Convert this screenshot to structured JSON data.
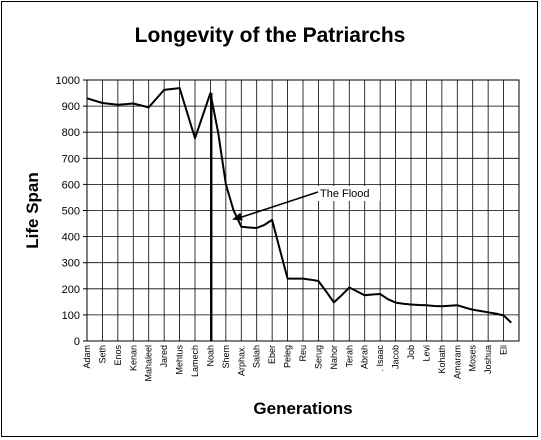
{
  "chart_data": {
    "type": "line",
    "title": "Longevity of the Patriarchs",
    "xlabel": "Generations",
    "ylabel": "Life Span",
    "ylim": [
      0,
      1000
    ],
    "yticks": [
      0,
      100,
      200,
      300,
      400,
      500,
      600,
      700,
      800,
      900,
      1000
    ],
    "grid": true,
    "categories": [
      "Adam",
      "Seth",
      "Enos",
      "Kenan",
      "Mahaleel",
      "Jared",
      "Mehtus",
      "Lamech",
      "Noah",
      "Shem",
      "Arphax.",
      "Salah",
      "Eber",
      "Peleg",
      "Reu",
      "Serug",
      "Nahor",
      "Terah",
      "Abrah",
      ". Isaac",
      "Jacob",
      "Job",
      "Levi",
      "Kohath",
      "Amaram",
      "Moses",
      "Joshua",
      "Eli"
    ],
    "x_positions": [
      0,
      1,
      2,
      3,
      4,
      5,
      6,
      7,
      8,
      9,
      10,
      11,
      12,
      13,
      14,
      15,
      16,
      17,
      18,
      19,
      20,
      21,
      22,
      23,
      24,
      25,
      26,
      27
    ],
    "series": [
      {
        "x": [
          0,
          1,
          2,
          3,
          4,
          5,
          6,
          7,
          8,
          8.5,
          9,
          9.5,
          10,
          10.5,
          11,
          11.5,
          12,
          12.5,
          13,
          13.5,
          14,
          14.5,
          15,
          15.5,
          16,
          16.5,
          17,
          17.5,
          18,
          18.5,
          19,
          19.5,
          20,
          20.5,
          21,
          21.5,
          22,
          22.5,
          23,
          23.5,
          24,
          24.5,
          25,
          25.5,
          26,
          26.5,
          27,
          27.5
        ],
        "values": [
          930,
          912,
          905,
          910,
          895,
          962,
          969,
          777,
          950,
          800,
          600,
          500,
          438,
          435,
          433,
          445,
          464,
          350,
          239,
          239,
          239,
          235,
          230,
          190,
          148,
          175,
          205,
          190,
          175,
          178,
          180,
          160,
          147,
          143,
          140,
          138,
          137,
          134,
          133,
          135,
          137,
          128,
          120,
          115,
          110,
          105,
          98,
          70
        ]
      }
    ],
    "flood_marker_x": 8,
    "annotations": [
      {
        "text": "The Flood"
      }
    ]
  }
}
